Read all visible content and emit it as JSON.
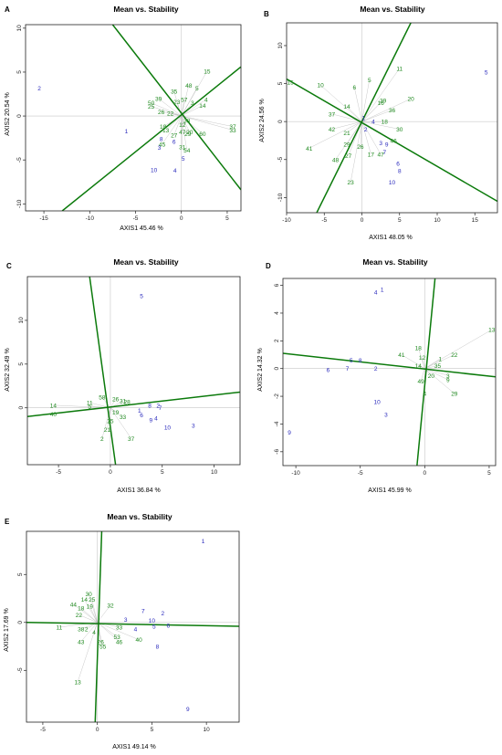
{
  "colors": {
    "genotype": "#1f8a1f",
    "environment": "#2b2bbd",
    "axis_line": "#0b7a0b",
    "frame": "#222222",
    "zero": "#c8c8c8",
    "vector": "#b0b0b0"
  },
  "chart_data": [
    {
      "type": "scatter",
      "panel_label": "A",
      "title": "Mean vs. Stability",
      "xlabel": "AXIS1 45.46 %",
      "ylabel": "AXIS2 20.54 %",
      "xlim": [
        -17,
        6.5
      ],
      "ylim": [
        -10.8,
        10.4
      ],
      "xticks": [
        -15,
        -10,
        -5,
        0,
        5
      ],
      "yticks": [
        -10,
        -5,
        0,
        5,
        10
      ],
      "genotype_points": [
        {
          "label": "15",
          "x": 2.8,
          "y": 5.1
        },
        {
          "label": "48",
          "x": 0.8,
          "y": 3.5
        },
        {
          "label": "35",
          "x": -0.8,
          "y": 2.8
        },
        {
          "label": "5",
          "x": 1.7,
          "y": 3.2
        },
        {
          "label": "39",
          "x": -2.5,
          "y": 2.0
        },
        {
          "label": "50",
          "x": -3.3,
          "y": 1.5
        },
        {
          "label": "25",
          "x": -3.3,
          "y": 1.1
        },
        {
          "label": "23",
          "x": -0.5,
          "y": 1.6
        },
        {
          "label": "57",
          "x": 0.3,
          "y": 1.9
        },
        {
          "label": "3",
          "x": 1.2,
          "y": 1.5
        },
        {
          "label": "14",
          "x": 2.3,
          "y": 1.2
        },
        {
          "label": "4",
          "x": 2.7,
          "y": 1.9
        },
        {
          "label": "26",
          "x": -2.2,
          "y": 0.5
        },
        {
          "label": "22",
          "x": -1.2,
          "y": 0.3
        },
        {
          "label": "38",
          "x": 0.6,
          "y": -0.5
        },
        {
          "label": "18",
          "x": -2.0,
          "y": -1.2
        },
        {
          "label": "13",
          "x": -1.7,
          "y": -1.6
        },
        {
          "label": "12",
          "x": 0.1,
          "y": -1.0
        },
        {
          "label": "27",
          "x": -0.8,
          "y": -2.2
        },
        {
          "label": "47",
          "x": 0.1,
          "y": -1.8
        },
        {
          "label": "20",
          "x": 0.9,
          "y": -1.8
        },
        {
          "label": "29",
          "x": 0.7,
          "y": -2.0
        },
        {
          "label": "60",
          "x": 2.3,
          "y": -2.0
        },
        {
          "label": "31",
          "x": 0.1,
          "y": -3.5
        },
        {
          "label": "54",
          "x": 0.6,
          "y": -3.9
        },
        {
          "label": "45",
          "x": -2.1,
          "y": -3.2
        },
        {
          "label": "37",
          "x": 5.6,
          "y": -1.2
        },
        {
          "label": "33",
          "x": 5.6,
          "y": -1.6
        }
      ],
      "environment_points": [
        {
          "label": "2",
          "x": -15.5,
          "y": 3.2
        },
        {
          "label": "1",
          "x": -6.0,
          "y": -1.7
        },
        {
          "label": "3",
          "x": -2.4,
          "y": -3.6
        },
        {
          "label": "6",
          "x": -0.8,
          "y": -2.9
        },
        {
          "label": "10",
          "x": -3.0,
          "y": -6.1
        },
        {
          "label": "4",
          "x": -0.7,
          "y": -6.2
        },
        {
          "label": "5",
          "x": 0.2,
          "y": -4.8
        },
        {
          "label": "8",
          "x": -2.2,
          "y": -2.6
        }
      ],
      "guide_lines": [
        {
          "x1": -13,
          "y1": -10.8,
          "x2": 6.5,
          "y2": 5.6
        },
        {
          "x1": -7.5,
          "y1": 10.4,
          "x2": 6.5,
          "y2": -8.4
        }
      ]
    },
    {
      "type": "scatter",
      "panel_label": "B",
      "title": "Mean vs. Stability",
      "xlabel": "AXIS1 48.05 %",
      "ylabel": "AXIS2 24.56 %",
      "xlim": [
        -10,
        18
      ],
      "ylim": [
        -12,
        13
      ],
      "xticks": [
        -10,
        -5,
        0,
        5,
        10,
        15
      ],
      "yticks": [
        -10,
        -5,
        0,
        5,
        10
      ],
      "genotype_points": [
        {
          "label": "15",
          "x": -9.5,
          "y": 5.2
        },
        {
          "label": "10",
          "x": -5.5,
          "y": 4.8
        },
        {
          "label": "11",
          "x": 5.0,
          "y": 7.0
        },
        {
          "label": "5",
          "x": 1.0,
          "y": 5.5
        },
        {
          "label": "6",
          "x": -1.0,
          "y": 4.5
        },
        {
          "label": "20",
          "x": 6.5,
          "y": 3.0
        },
        {
          "label": "14",
          "x": -2.0,
          "y": 2.0
        },
        {
          "label": "37",
          "x": -4.0,
          "y": 1.0
        },
        {
          "label": "42",
          "x": -4.0,
          "y": -1.0
        },
        {
          "label": "41",
          "x": -7.0,
          "y": -3.5
        },
        {
          "label": "21",
          "x": -2.0,
          "y": -1.5
        },
        {
          "label": "29",
          "x": -2.0,
          "y": -3.0
        },
        {
          "label": "26",
          "x": -0.2,
          "y": -3.3
        },
        {
          "label": "48",
          "x": -3.5,
          "y": -5.0
        },
        {
          "label": "27",
          "x": -1.8,
          "y": -4.5
        },
        {
          "label": "17",
          "x": 1.2,
          "y": -4.3
        },
        {
          "label": "47",
          "x": 2.5,
          "y": -4.3
        },
        {
          "label": "23",
          "x": -1.5,
          "y": -8.0
        },
        {
          "label": "36",
          "x": 4.0,
          "y": 1.5
        },
        {
          "label": "30",
          "x": 5.0,
          "y": -1.0
        },
        {
          "label": "46",
          "x": 4.2,
          "y": -2.5
        },
        {
          "label": "18",
          "x": 3.0,
          "y": 0.0
        },
        {
          "label": "16",
          "x": 2.5,
          "y": 2.5
        },
        {
          "label": "39",
          "x": 2.8,
          "y": 2.8
        }
      ],
      "environment_points": [
        {
          "label": "5",
          "x": 16.5,
          "y": 6.5
        },
        {
          "label": "7",
          "x": 3.0,
          "y": -4.0
        },
        {
          "label": "6",
          "x": 4.8,
          "y": -5.5
        },
        {
          "label": "8",
          "x": 5.0,
          "y": -6.5
        },
        {
          "label": "10",
          "x": 4.0,
          "y": -8.0
        },
        {
          "label": "9",
          "x": 3.3,
          "y": -3.0
        },
        {
          "label": "4",
          "x": 1.5,
          "y": 0.0
        },
        {
          "label": "3",
          "x": 2.5,
          "y": -2.8
        },
        {
          "label": "2",
          "x": 0.5,
          "y": -1.0
        },
        {
          "label": "1",
          "x": 0.2,
          "y": 0.5
        }
      ],
      "guide_lines": [
        {
          "x1": -6,
          "y1": -12,
          "x2": 6.5,
          "y2": 13
        },
        {
          "x1": -10,
          "y1": 5.6,
          "x2": 18,
          "y2": -10.5
        }
      ]
    },
    {
      "type": "scatter",
      "panel_label": "C",
      "title": "Mean vs. Stability",
      "xlabel": "AXIS1 36.84 %",
      "ylabel": "AXIS2 32.49 %",
      "xlim": [
        -8,
        12.5
      ],
      "ylim": [
        -6.5,
        15
      ],
      "xticks": [
        -5,
        0,
        5,
        10
      ],
      "yticks": [
        0,
        5,
        10
      ],
      "genotype_points": [
        {
          "label": "14",
          "x": -5.5,
          "y": 0.3
        },
        {
          "label": "40",
          "x": -5.5,
          "y": -0.7
        },
        {
          "label": "11",
          "x": -2.0,
          "y": 0.6
        },
        {
          "label": "5",
          "x": -2.0,
          "y": 0.2
        },
        {
          "label": "58",
          "x": -0.8,
          "y": 1.2
        },
        {
          "label": "26",
          "x": 0.5,
          "y": 1.0
        },
        {
          "label": "31",
          "x": 1.2,
          "y": 0.8
        },
        {
          "label": "28",
          "x": 1.6,
          "y": 0.7
        },
        {
          "label": "21",
          "x": -0.3,
          "y": -2.5
        },
        {
          "label": "2",
          "x": -0.8,
          "y": -3.5
        },
        {
          "label": "37",
          "x": 2.0,
          "y": -3.5
        },
        {
          "label": "25",
          "x": 0.0,
          "y": -1.5
        },
        {
          "label": "33",
          "x": 1.2,
          "y": -1.0
        },
        {
          "label": "19",
          "x": 0.5,
          "y": -0.5
        }
      ],
      "environment_points": [
        {
          "label": "5",
          "x": 3.0,
          "y": 12.8
        },
        {
          "label": "1",
          "x": 2.8,
          "y": -0.3
        },
        {
          "label": "6",
          "x": 3.0,
          "y": -0.8
        },
        {
          "label": "8",
          "x": 3.8,
          "y": 0.3
        },
        {
          "label": "2",
          "x": 4.6,
          "y": 0.3
        },
        {
          "label": "7",
          "x": 4.8,
          "y": 0.0
        },
        {
          "label": "9",
          "x": 3.9,
          "y": -1.4
        },
        {
          "label": "4",
          "x": 4.4,
          "y": -1.2
        },
        {
          "label": "10",
          "x": 5.5,
          "y": -2.2
        },
        {
          "label": "3",
          "x": 8.0,
          "y": -2.0
        }
      ],
      "guide_lines": [
        {
          "x1": -8,
          "y1": -1.0,
          "x2": 12.5,
          "y2": 1.8
        },
        {
          "x1": -2,
          "y1": 15,
          "x2": 0.5,
          "y2": -6.5
        }
      ]
    },
    {
      "type": "scatter",
      "panel_label": "D",
      "title": "Mean vs. Stability",
      "xlabel": "AXIS1 45.99 %",
      "ylabel": "AXIS2 14.32 %",
      "xlim": [
        -11,
        5.5
      ],
      "ylim": [
        -7,
        6.5
      ],
      "xticks": [
        -10,
        -5,
        0,
        5
      ],
      "yticks": [
        -6,
        -4,
        -2,
        0,
        2,
        4,
        6
      ],
      "genotype_points": [
        {
          "label": "13",
          "x": 5.2,
          "y": 2.8
        },
        {
          "label": "22",
          "x": 2.3,
          "y": 1.0
        },
        {
          "label": "29",
          "x": 2.3,
          "y": -1.8
        },
        {
          "label": "41",
          "x": -1.8,
          "y": 1.0
        },
        {
          "label": "18",
          "x": -0.5,
          "y": 1.5
        },
        {
          "label": "1",
          "x": 1.2,
          "y": 0.7
        },
        {
          "label": "35",
          "x": 1.0,
          "y": 0.2
        },
        {
          "label": "3",
          "x": 1.8,
          "y": -0.5
        },
        {
          "label": "9",
          "x": 1.8,
          "y": -0.8
        },
        {
          "label": "4",
          "x": 0.0,
          "y": -1.8
        },
        {
          "label": "12",
          "x": -0.2,
          "y": 0.8
        },
        {
          "label": "49",
          "x": -0.3,
          "y": -0.9
        },
        {
          "label": "20",
          "x": 0.5,
          "y": -0.5
        },
        {
          "label": "14",
          "x": -0.5,
          "y": 0.2
        }
      ],
      "environment_points": [
        {
          "label": "4",
          "x": -3.8,
          "y": 5.5
        },
        {
          "label": "1",
          "x": -3.3,
          "y": 5.7
        },
        {
          "label": "5",
          "x": -5.7,
          "y": 0.6
        },
        {
          "label": "8",
          "x": -5.0,
          "y": 0.6
        },
        {
          "label": "6",
          "x": -7.5,
          "y": -0.1
        },
        {
          "label": "7",
          "x": -6.0,
          "y": 0.0
        },
        {
          "label": "2",
          "x": -3.8,
          "y": 0.0
        },
        {
          "label": "10",
          "x": -3.7,
          "y": -2.4
        },
        {
          "label": "3",
          "x": -3.0,
          "y": -3.3
        },
        {
          "label": "9",
          "x": -10.5,
          "y": -4.6
        }
      ],
      "guide_lines": [
        {
          "x1": -11,
          "y1": 1.1,
          "x2": 5.5,
          "y2": -0.6
        },
        {
          "x1": -0.6,
          "y1": -7,
          "x2": 0.8,
          "y2": 6.5
        }
      ]
    },
    {
      "type": "scatter",
      "panel_label": "E",
      "title": "Mean vs. Stability",
      "xlabel": "AXIS1 49.14 %",
      "ylabel": "AXIS2 17.69 %",
      "xlim": [
        -6.5,
        13
      ],
      "ylim": [
        -10.4,
        9.5
      ],
      "xticks": [
        -5,
        0,
        5,
        10
      ],
      "yticks": [
        -5,
        0,
        5
      ],
      "genotype_points": [
        {
          "label": "30",
          "x": -0.8,
          "y": 3.0
        },
        {
          "label": "14",
          "x": -1.2,
          "y": 2.4
        },
        {
          "label": "25",
          "x": -0.5,
          "y": 2.4
        },
        {
          "label": "44",
          "x": -2.2,
          "y": 1.9
        },
        {
          "label": "18",
          "x": -1.5,
          "y": 1.5
        },
        {
          "label": "19",
          "x": -0.7,
          "y": 1.7
        },
        {
          "label": "22",
          "x": -1.7,
          "y": 0.8
        },
        {
          "label": "11",
          "x": -3.5,
          "y": -0.5
        },
        {
          "label": "38",
          "x": -1.5,
          "y": -0.7
        },
        {
          "label": "2",
          "x": -1.0,
          "y": -0.7
        },
        {
          "label": "43",
          "x": -1.5,
          "y": -2.0
        },
        {
          "label": "4",
          "x": -0.3,
          "y": -1.0
        },
        {
          "label": "32",
          "x": 1.2,
          "y": 1.8
        },
        {
          "label": "33",
          "x": 2.0,
          "y": -0.5
        },
        {
          "label": "53",
          "x": 1.8,
          "y": -1.5
        },
        {
          "label": "46",
          "x": 2.0,
          "y": -2.0
        },
        {
          "label": "40",
          "x": 3.8,
          "y": -1.8
        },
        {
          "label": "55",
          "x": 0.5,
          "y": -2.5
        },
        {
          "label": "26",
          "x": 0.3,
          "y": -2.0
        },
        {
          "label": "13",
          "x": -1.8,
          "y": -6.2
        }
      ],
      "environment_points": [
        {
          "label": "1",
          "x": 9.7,
          "y": 8.5
        },
        {
          "label": "7",
          "x": 4.2,
          "y": 1.2
        },
        {
          "label": "2",
          "x": 6.0,
          "y": 1.0
        },
        {
          "label": "10",
          "x": 5.0,
          "y": 0.2
        },
        {
          "label": "5",
          "x": 5.2,
          "y": -0.4
        },
        {
          "label": "6",
          "x": 6.5,
          "y": -0.3
        },
        {
          "label": "4",
          "x": 3.5,
          "y": -0.7
        },
        {
          "label": "3",
          "x": 2.6,
          "y": 0.3
        },
        {
          "label": "8",
          "x": 5.5,
          "y": -2.5
        },
        {
          "label": "9",
          "x": 8.3,
          "y": -9.0
        }
      ],
      "guide_lines": [
        {
          "x1": -6.5,
          "y1": 0.0,
          "x2": 13,
          "y2": -0.4
        },
        {
          "x1": -0.2,
          "y1": -10.4,
          "x2": 0.4,
          "y2": 9.5
        }
      ]
    }
  ]
}
